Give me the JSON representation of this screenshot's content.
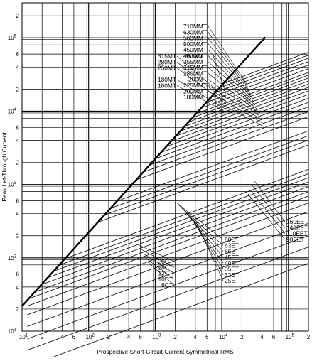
{
  "chart_data": {
    "type": "line",
    "xlabel": "Prospective Short-Circuit Current Symmetrical RMS",
    "ylabel": "Peak Let-Through Current",
    "scale": "log-log",
    "grid": true,
    "xlim": [
      10,
      200000
    ],
    "ylim": [
      10,
      300000
    ],
    "x_ticks": [
      {
        "v": 10,
        "b": "10",
        "e": "1"
      },
      {
        "v": 20,
        "b": "2"
      },
      {
        "v": 40,
        "b": "4"
      },
      {
        "v": 60,
        "b": "6"
      },
      {
        "v": 100,
        "b": "10",
        "e": "2"
      },
      {
        "v": 200,
        "b": "2"
      },
      {
        "v": 400,
        "b": "4"
      },
      {
        "v": 600,
        "b": "6"
      },
      {
        "v": 1000,
        "b": "10",
        "e": "3"
      },
      {
        "v": 2000,
        "b": "2"
      },
      {
        "v": 4000,
        "b": "4"
      },
      {
        "v": 6000,
        "b": "6"
      },
      {
        "v": 10000,
        "b": "10",
        "e": "4"
      },
      {
        "v": 20000,
        "b": "2"
      },
      {
        "v": 40000,
        "b": "4"
      },
      {
        "v": 60000,
        "b": "6"
      },
      {
        "v": 100000,
        "b": "10",
        "e": "5"
      },
      {
        "v": 200000,
        "b": "2"
      }
    ],
    "y_ticks": [
      {
        "v": 10,
        "b": "10",
        "e": "1"
      },
      {
        "v": 20,
        "b": "2"
      },
      {
        "v": 40,
        "b": "4"
      },
      {
        "v": 60,
        "b": "6"
      },
      {
        "v": 100,
        "b": "10",
        "e": "2"
      },
      {
        "v": 200,
        "b": "2"
      },
      {
        "v": 400,
        "b": "4"
      },
      {
        "v": 600,
        "b": "6"
      },
      {
        "v": 1000,
        "b": "10",
        "e": "3"
      },
      {
        "v": 2000,
        "b": "2"
      },
      {
        "v": 4000,
        "b": "4"
      },
      {
        "v": 6000,
        "b": "6"
      },
      {
        "v": 10000,
        "b": "10",
        "e": "4"
      },
      {
        "v": 20000,
        "b": "2"
      },
      {
        "v": 40000,
        "b": "4"
      },
      {
        "v": 60000,
        "b": "6"
      },
      {
        "v": 100000,
        "b": "10",
        "e": "5"
      },
      {
        "v": 200000,
        "b": "2"
      }
    ],
    "reference_line": {
      "x": [
        10,
        45000
      ],
      "y": [
        22,
        102000
      ]
    },
    "series": [
      {
        "name": "6CT",
        "k": 1.2,
        "group": "CT"
      },
      {
        "name": "10CT",
        "k": 1.55,
        "group": "CT"
      },
      {
        "name": "12CT",
        "k": 1.85,
        "group": "CT"
      },
      {
        "name": "16CT",
        "k": 2.25,
        "group": "CT"
      },
      {
        "name": "20CT",
        "k": 2.7,
        "group": "CT"
      },
      {
        "name": "25ET",
        "k": 3.1,
        "group": "ET"
      },
      {
        "name": "32ET",
        "k": 3.45,
        "group": "ET"
      },
      {
        "name": "35ET",
        "k": 3.7,
        "group": "ET"
      },
      {
        "name": "40ET",
        "k": 4.0,
        "group": "ET"
      },
      {
        "name": "45ET",
        "k": 4.3,
        "group": "ET"
      },
      {
        "name": "56ET",
        "k": 4.6,
        "group": "ET"
      },
      {
        "name": "63ET",
        "k": 4.9,
        "group": "ET"
      },
      {
        "name": "80ET",
        "k": 5.25,
        "group": "ET"
      },
      {
        "name": "90EET",
        "k": 7.7,
        "group": "EET"
      },
      {
        "name": "110EET",
        "k": 8.3,
        "group": "EET"
      },
      {
        "name": "140EET",
        "k": 8.9,
        "group": "EET"
      },
      {
        "name": "160EET",
        "k": 9.6,
        "group": "EET"
      },
      {
        "name": "160MT",
        "k": 12.0,
        "group": "MT"
      },
      {
        "name": "180MT",
        "k": 13.0,
        "group": "MT"
      },
      {
        "name": "180MMT",
        "k": 14.0,
        "group": "MMT"
      },
      {
        "name": "200MMT",
        "k": 15.0,
        "group": "MMT"
      },
      {
        "name": "225MMT",
        "k": 16.0,
        "group": "MMT"
      },
      {
        "name": "200MT",
        "k": 17.0,
        "group": "MT"
      },
      {
        "name": "250MT",
        "k": 18.0,
        "group": "MT"
      },
      {
        "name": "280MMT",
        "k": 19.0,
        "group": "MMT"
      },
      {
        "name": "280MT",
        "k": 20.0,
        "group": "MT"
      },
      {
        "name": "315MMT",
        "k": 21.0,
        "group": "MMT"
      },
      {
        "name": "315MT",
        "k": 22.0,
        "group": "MT"
      },
      {
        "name": "355MT",
        "k": 23.0,
        "group": "MT"
      },
      {
        "name": "355MMT",
        "k": 24.0,
        "group": "MMT"
      },
      {
        "name": "400MMT",
        "k": 25.5,
        "group": "MMT"
      },
      {
        "name": "450MMT",
        "k": 27.0,
        "group": "MMT"
      },
      {
        "name": "500MMT",
        "k": 28.5,
        "group": "MMT"
      },
      {
        "name": "560MMT",
        "k": 30.0,
        "group": "MMT"
      },
      {
        "name": "630MMT",
        "k": 31.5,
        "group": "MMT"
      },
      {
        "name": "710MMT",
        "k": 33.0,
        "group": "MMT"
      }
    ],
    "label_blocks": [
      {
        "id": "mmt-right",
        "lines": [
          "710MMT",
          "630MMT",
          "560MMT",
          "500MMT",
          "450MMT",
          "400MMT",
          "355MMT",
          "315MMT",
          "280MMT",
          "200MT",
          "225MMT",
          "200MMT",
          "180MMT"
        ]
      },
      {
        "id": "mt-left",
        "lines": [
          "315MT",
          "280MT",
          "250MT",
          "",
          "180MT",
          "160MT"
        ]
      },
      {
        "id": "mt-mid",
        "lines": [
          "355MT"
        ]
      },
      {
        "id": "ct",
        "lines": [
          "20CT",
          "16CT",
          "12CT",
          "10CT",
          "6CT"
        ]
      },
      {
        "id": "et",
        "lines": [
          "80ET",
          "63ET",
          "56ET",
          "45ET",
          "40ET",
          "35ET",
          "32ET",
          "25ET"
        ]
      },
      {
        "id": "eet",
        "lines": [
          "160EET",
          "140EET",
          "110EET",
          "90EET"
        ]
      }
    ]
  }
}
